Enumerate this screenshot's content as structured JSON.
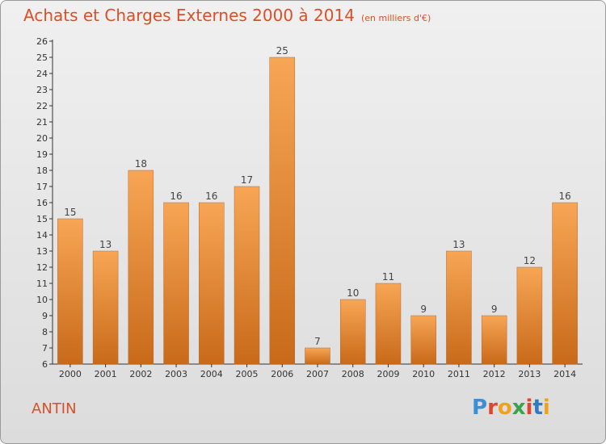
{
  "title": "Achats et Charges Externes 2000 à 2014",
  "subtitle": "(en milliers d'€)",
  "commune": "ANTIN",
  "logo": {
    "text": "Proxiti",
    "colors": [
      "#3b8fd4",
      "#e2452f",
      "#f2a11f",
      "#3aa34a",
      "#e2452f",
      "#2f7ac7",
      "#f2a11f"
    ]
  },
  "colors": {
    "bar_light": "#f7a655",
    "bar_dark": "#c86a1a",
    "accent": "#d8502a"
  },
  "chart_data": {
    "type": "bar",
    "categories": [
      "2000",
      "2001",
      "2002",
      "2003",
      "2004",
      "2005",
      "2006",
      "2007",
      "2008",
      "2009",
      "2010",
      "2011",
      "2012",
      "2013",
      "2014"
    ],
    "values": [
      15,
      13,
      18,
      16,
      16,
      17,
      25,
      7,
      10,
      11,
      9,
      13,
      9,
      12,
      16
    ],
    "ylim": [
      6,
      26
    ],
    "yticks": [
      6,
      7,
      8,
      9,
      10,
      11,
      12,
      13,
      14,
      15,
      16,
      17,
      18,
      19,
      20,
      21,
      22,
      23,
      24,
      25,
      26
    ],
    "grid": false,
    "data_labels": true
  }
}
